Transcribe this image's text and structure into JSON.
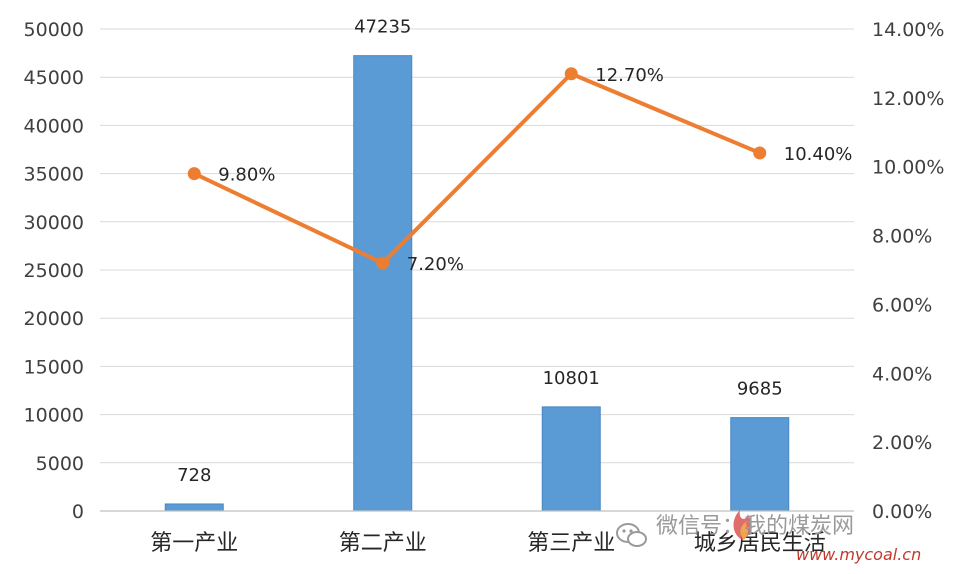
{
  "chart_data": {
    "type": "bar",
    "categories": [
      "第一产业",
      "第二产业",
      "第三产业",
      "城乡居民生活"
    ],
    "series": [
      {
        "type": "bar",
        "values": [
          728,
          47235,
          10801,
          9685
        ],
        "color": "#5b9bd5",
        "axis": "left"
      },
      {
        "type": "line",
        "values": [
          9.8,
          7.2,
          12.7,
          10.4
        ],
        "labels": [
          "9.80%",
          "7.20%",
          "12.70%",
          "10.40%"
        ],
        "color": "#ed7d31",
        "axis": "right"
      }
    ],
    "bar_labels": [
      "728",
      "47235",
      "10801",
      "9685"
    ],
    "y_left": {
      "min": 0,
      "max": 50000,
      "step": 5000,
      "ticks": [
        "0",
        "5000",
        "10000",
        "15000",
        "20000",
        "25000",
        "30000",
        "35000",
        "40000",
        "45000",
        "50000"
      ]
    },
    "y_right": {
      "min": 0,
      "max": 14,
      "step": 2,
      "ticks": [
        "0.00%",
        "2.00%",
        "4.00%",
        "6.00%",
        "8.00%",
        "10.00%",
        "12.00%",
        "14.00%"
      ]
    },
    "grid": true,
    "gridline_color": "#d9d9d9"
  },
  "watermark": {
    "text": "微信号：我的煤炭网",
    "url": "www.mycoal.cn",
    "logo": "flame-logo-icon",
    "wechat_icon": "wechat-icon"
  }
}
